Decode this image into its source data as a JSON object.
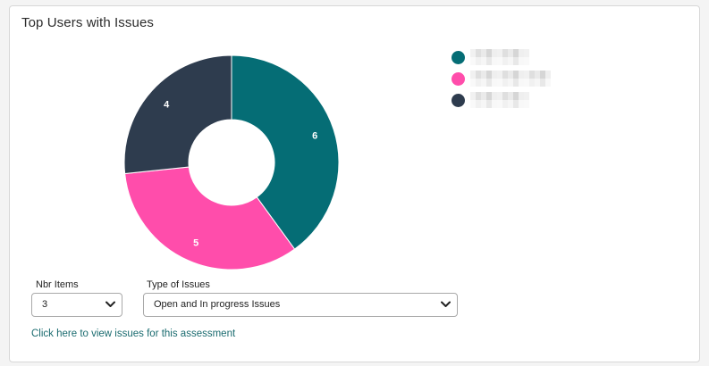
{
  "card": {
    "title": "Top Users with Issues"
  },
  "chart_data": {
    "type": "pie",
    "variant": "donut",
    "categories": [
      "",
      "",
      ""
    ],
    "values": [
      6,
      5,
      4
    ],
    "colors": [
      "#056d75",
      "#ff4dab",
      "#2e3c4e"
    ],
    "data_labels": [
      "6",
      "5",
      "4"
    ],
    "legend_position": "top-right"
  },
  "legend": {
    "items": [
      {
        "color": "#056d75",
        "label_obscured": true
      },
      {
        "color": "#ff4dab",
        "label_obscured": true
      },
      {
        "color": "#2e3c4e",
        "label_obscured": true
      }
    ]
  },
  "controls": {
    "nbr_items_label": "Nbr Items",
    "nbr_items_value": "3",
    "type_label": "Type of Issues",
    "type_value": "Open and In progress Issues",
    "chevron_icon": "chevron-down-icon"
  },
  "link": {
    "text": "Click here to view issues for this assessment"
  }
}
